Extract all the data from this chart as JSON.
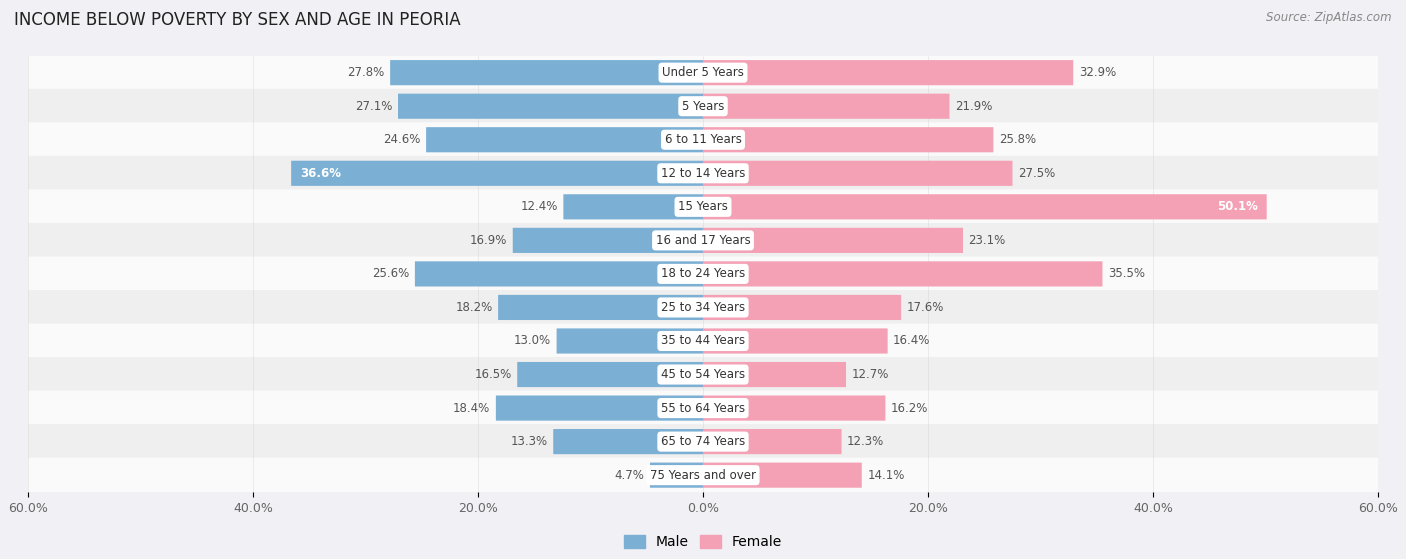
{
  "title": "INCOME BELOW POVERTY BY SEX AND AGE IN PEORIA",
  "source": "Source: ZipAtlas.com",
  "categories": [
    "Under 5 Years",
    "5 Years",
    "6 to 11 Years",
    "12 to 14 Years",
    "15 Years",
    "16 and 17 Years",
    "18 to 24 Years",
    "25 to 34 Years",
    "35 to 44 Years",
    "45 to 54 Years",
    "55 to 64 Years",
    "65 to 74 Years",
    "75 Years and over"
  ],
  "male": [
    27.8,
    27.1,
    24.6,
    36.6,
    12.4,
    16.9,
    25.6,
    18.2,
    13.0,
    16.5,
    18.4,
    13.3,
    4.7
  ],
  "female": [
    32.9,
    21.9,
    25.8,
    27.5,
    50.1,
    23.1,
    35.5,
    17.6,
    16.4,
    12.7,
    16.2,
    12.3,
    14.1
  ],
  "male_color": "#7BAFD4",
  "female_color": "#F4A0B5",
  "label_color": "#555555",
  "white_label_color": "#FFFFFF",
  "xlim": 60.0,
  "bar_height": 0.72,
  "background_color": "#F0F0F5",
  "row_bg_even": "#FAFAFA",
  "row_bg_odd": "#EFEFEF",
  "title_fontsize": 12,
  "source_fontsize": 8.5,
  "cat_label_fontsize": 8.5,
  "val_label_fontsize": 8.5,
  "tick_fontsize": 9,
  "legend_fontsize": 10
}
